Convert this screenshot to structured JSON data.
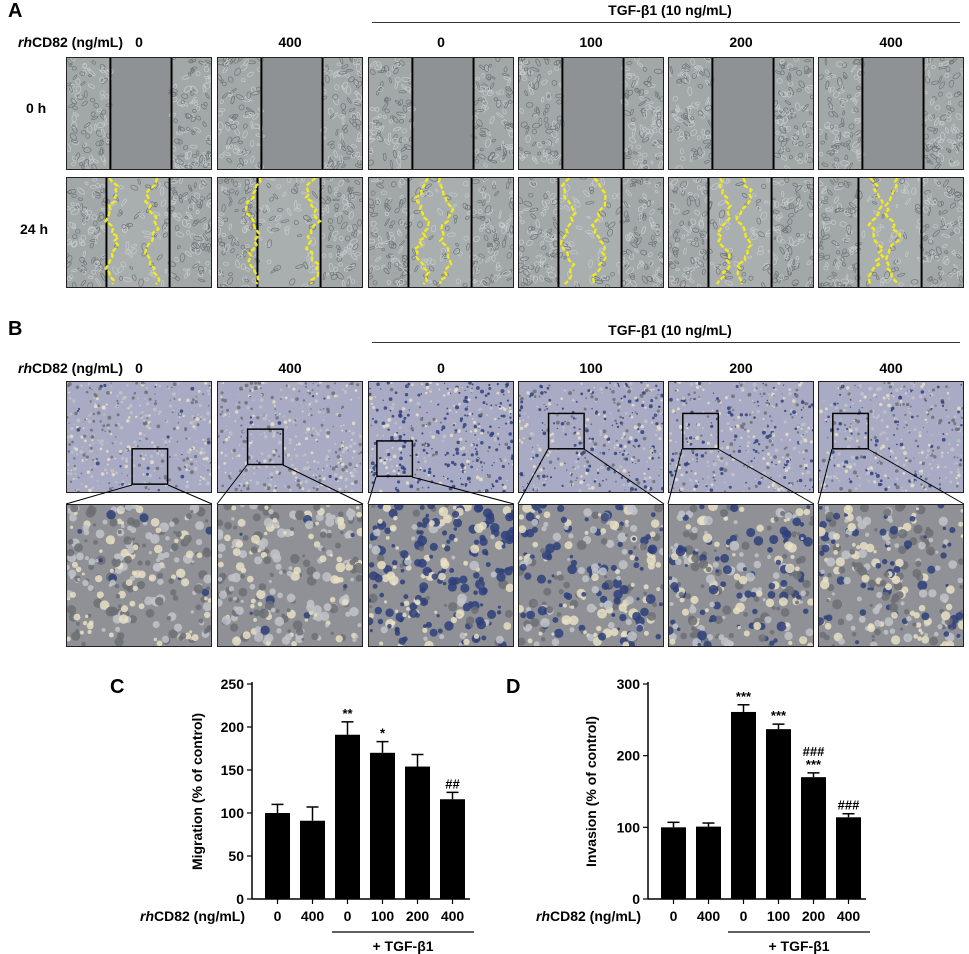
{
  "panels": {
    "A": "A",
    "B": "B",
    "C": "C",
    "D": "D"
  },
  "treatment_label": "CD82 (ng/mL)",
  "treatment_prefix": "rh",
  "tgf_label": "TGF-β1 (10 ng/mL)",
  "tgf_plus_label": "+ TGF-β1",
  "dose_labels": [
    "0",
    "400",
    "0",
    "100",
    "200",
    "400"
  ],
  "time_labels": [
    "0 h",
    "24 h"
  ],
  "colors": {
    "bar": "#000000",
    "scratch_line": "#f2ea1c",
    "wound_bg": "#8e9294",
    "cell_bg": "#a2a7a8",
    "transwell_bg": "#a9abc5",
    "stain_dark": "#2f3f7a"
  },
  "chart_data": [
    {
      "type": "bar",
      "panel": "C",
      "categories": [
        "0",
        "400",
        "0",
        "100",
        "200",
        "400"
      ],
      "values": [
        100,
        91,
        191,
        170,
        154,
        116
      ],
      "errors": [
        10,
        16,
        15,
        13,
        14,
        8
      ],
      "annotations": [
        "",
        "",
        "**",
        "*",
        "",
        "##"
      ],
      "ylabel": "Migration (% of control)",
      "yticks": [
        0,
        50,
        100,
        150,
        200,
        250
      ],
      "ylim": [
        0,
        250
      ]
    },
    {
      "type": "bar",
      "panel": "D",
      "categories": [
        "0",
        "400",
        "0",
        "100",
        "200",
        "400"
      ],
      "values": [
        100,
        101,
        261,
        237,
        170,
        114
      ],
      "errors": [
        7,
        5,
        10,
        7,
        6,
        5
      ],
      "annotations": [
        "",
        "",
        "***",
        "***",
        "###\n***",
        "###"
      ],
      "ylabel": "Invasion (% of control)",
      "yticks": [
        0,
        100,
        200,
        300
      ],
      "ylim": [
        0,
        300
      ]
    }
  ]
}
